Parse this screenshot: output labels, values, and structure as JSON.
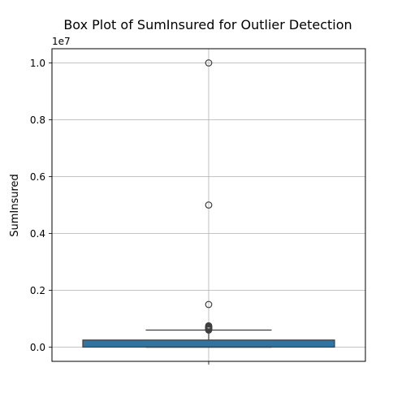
{
  "chart_data": {
    "type": "box",
    "title": "Box Plot of SumInsured for Outlier Detection",
    "xlabel": "",
    "ylabel": "SumInsured",
    "offset_label": "1e7",
    "ylim": [
      -0.05,
      1.05
    ],
    "yticks": [
      0.0,
      0.2,
      0.4,
      0.6,
      0.8,
      1.0
    ],
    "ytick_labels": [
      "0.0",
      "0.2",
      "0.4",
      "0.6",
      "0.8",
      "1.0"
    ],
    "grid": true,
    "box": {
      "q1": 0.0,
      "median": 0.0,
      "q3": 0.025,
      "whisker_low": 0.0,
      "whisker_high": 0.06
    },
    "outliers": [
      1.0,
      0.5,
      0.15,
      0.075,
      0.072,
      0.07,
      0.068,
      0.066,
      0.064,
      0.062,
      0.06
    ],
    "colors": {
      "box_fill": "#3274a1",
      "box_edge": "#3f3f3f",
      "grid": "#b0b0b0"
    }
  }
}
